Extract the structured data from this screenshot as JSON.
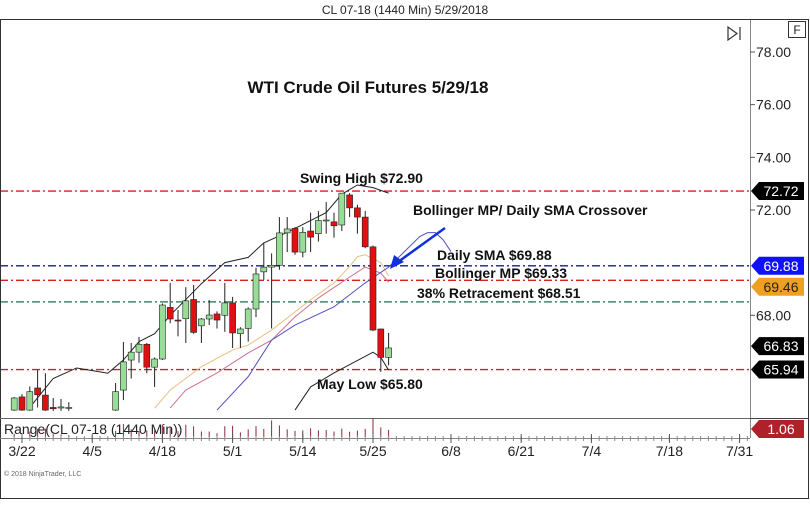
{
  "header": {
    "title": "CL 07-18 (1440 Min)  5/29/2018"
  },
  "toolbar": {
    "scroll_end_icon": "skip-to-end-icon",
    "f_button": "F"
  },
  "indicator_label": "Range(CL 07-18 (1440 Min))",
  "watermark": "© 2018 NinjaTrader, LLC",
  "chart_data": {
    "type": "candlestick",
    "title": "WTI Crude Oil Futures 5/29/18",
    "ylim": [
      64.37,
      79.2
    ],
    "y_ticks": [
      "78.00",
      "76.00",
      "74.00",
      "72.00",
      "68.00"
    ],
    "x_tick_labels": [
      "3/22",
      "4/5",
      "4/18",
      "5/1",
      "5/14",
      "5/25",
      "6/8",
      "6/21",
      "7/4",
      "7/18",
      "7/31"
    ],
    "holidays": [
      "3/30"
    ],
    "candles": [
      {
        "d": "3/21",
        "o": 64.4,
        "h": 64.9,
        "l": 64.37,
        "c": 64.86
      },
      {
        "d": "3/22",
        "o": 64.9,
        "h": 65.0,
        "l": 64.37,
        "c": 64.4
      },
      {
        "d": "3/23",
        "o": 64.4,
        "h": 65.3,
        "l": 64.37,
        "c": 65.1
      },
      {
        "d": "3/26",
        "o": 65.24,
        "h": 65.92,
        "l": 64.5,
        "c": 64.98
      },
      {
        "d": "3/27",
        "o": 64.97,
        "h": 65.8,
        "l": 64.37,
        "c": 64.4
      },
      {
        "d": "3/28",
        "o": 64.5,
        "h": 64.86,
        "l": 64.37,
        "c": 64.45
      },
      {
        "d": "3/29",
        "o": 64.48,
        "h": 64.82,
        "l": 64.37,
        "c": 64.52
      },
      {
        "d": "4/2",
        "o": 64.5,
        "h": 64.7,
        "l": 64.37,
        "c": 64.5
      },
      {
        "d": "4/10",
        "o": 64.4,
        "h": 65.43,
        "l": 64.37,
        "c": 65.1
      },
      {
        "d": "4/11",
        "o": 65.16,
        "h": 66.99,
        "l": 64.78,
        "c": 66.23
      },
      {
        "d": "4/12",
        "o": 66.3,
        "h": 66.95,
        "l": 65.6,
        "c": 66.6
      },
      {
        "d": "4/13",
        "o": 66.6,
        "h": 67.18,
        "l": 66.2,
        "c": 66.9
      },
      {
        "d": "4/16",
        "o": 66.9,
        "h": 66.95,
        "l": 65.8,
        "c": 66.03
      },
      {
        "d": "4/17",
        "o": 66.03,
        "h": 66.4,
        "l": 65.28,
        "c": 66.34
      },
      {
        "d": "4/18",
        "o": 66.34,
        "h": 68.45,
        "l": 66.3,
        "c": 68.39
      },
      {
        "d": "4/19",
        "o": 68.3,
        "h": 69.23,
        "l": 67.7,
        "c": 67.86
      },
      {
        "d": "4/20",
        "o": 67.82,
        "h": 68.2,
        "l": 67.2,
        "c": 67.8
      },
      {
        "d": "4/23",
        "o": 67.87,
        "h": 69.07,
        "l": 66.95,
        "c": 68.55
      },
      {
        "d": "4/24",
        "o": 68.6,
        "h": 69.15,
        "l": 67.3,
        "c": 67.35
      },
      {
        "d": "4/25",
        "o": 67.6,
        "h": 67.9,
        "l": 66.95,
        "c": 67.86
      },
      {
        "d": "4/26",
        "o": 67.86,
        "h": 68.58,
        "l": 67.63,
        "c": 68.01
      },
      {
        "d": "4/27",
        "o": 68.05,
        "h": 68.15,
        "l": 67.5,
        "c": 67.82
      },
      {
        "d": "4/30",
        "o": 68.0,
        "h": 69.23,
        "l": 67.37,
        "c": 68.47
      },
      {
        "d": "5/1",
        "o": 68.47,
        "h": 68.7,
        "l": 66.76,
        "c": 67.33
      },
      {
        "d": "5/2",
        "o": 67.3,
        "h": 67.55,
        "l": 66.76,
        "c": 67.48
      },
      {
        "d": "5/3",
        "o": 67.5,
        "h": 68.3,
        "l": 67.0,
        "c": 68.24
      },
      {
        "d": "5/4",
        "o": 68.24,
        "h": 69.8,
        "l": 67.93,
        "c": 69.57
      },
      {
        "d": "5/7",
        "o": 69.65,
        "h": 70.74,
        "l": 69.35,
        "c": 69.83
      },
      {
        "d": "5/8",
        "o": 69.83,
        "h": 70.35,
        "l": 67.5,
        "c": 69.9
      },
      {
        "d": "5/9",
        "o": 69.9,
        "h": 71.73,
        "l": 69.73,
        "c": 71.13
      },
      {
        "d": "5/10",
        "o": 71.13,
        "h": 71.73,
        "l": 70.4,
        "c": 71.28
      },
      {
        "d": "5/11",
        "o": 71.3,
        "h": 71.35,
        "l": 70.3,
        "c": 70.4
      },
      {
        "d": "5/14",
        "o": 70.4,
        "h": 71.35,
        "l": 70.2,
        "c": 71.15
      },
      {
        "d": "5/15",
        "o": 71.2,
        "h": 71.9,
        "l": 70.4,
        "c": 70.97
      },
      {
        "d": "5/16",
        "o": 71.1,
        "h": 71.96,
        "l": 70.8,
        "c": 71.6
      },
      {
        "d": "5/17",
        "o": 71.6,
        "h": 72.3,
        "l": 71.1,
        "c": 71.62
      },
      {
        "d": "5/18",
        "o": 71.55,
        "h": 71.9,
        "l": 70.95,
        "c": 71.4
      },
      {
        "d": "5/21",
        "o": 71.43,
        "h": 72.64,
        "l": 71.2,
        "c": 72.64
      },
      {
        "d": "5/22",
        "o": 72.57,
        "h": 72.64,
        "l": 71.73,
        "c": 72.08
      },
      {
        "d": "5/23",
        "o": 72.08,
        "h": 72.2,
        "l": 71.1,
        "c": 71.73
      },
      {
        "d": "5/24",
        "o": 71.73,
        "h": 71.96,
        "l": 70.55,
        "c": 70.6
      },
      {
        "d": "5/25",
        "o": 70.6,
        "h": 70.65,
        "l": 67.4,
        "c": 67.44
      },
      {
        "d": "5/28",
        "o": 67.48,
        "h": 67.5,
        "l": 65.85,
        "c": 66.4
      },
      {
        "d": "5/29",
        "o": 66.4,
        "h": 67.33,
        "l": 66.1,
        "c": 66.76
      }
    ],
    "overlays": [
      {
        "name": "Bollinger upper",
        "color": "#222222",
        "points": [
          [
            "3/23",
            64.5
          ],
          [
            "3/28",
            65.6
          ],
          [
            "4/3",
            66.0
          ],
          [
            "4/6",
            65.85
          ],
          [
            "4/9",
            65.8
          ],
          [
            "4/11",
            66.3
          ],
          [
            "4/13",
            67.0
          ],
          [
            "4/17",
            67.3
          ],
          [
            "4/19",
            68.0
          ],
          [
            "4/25",
            69.2
          ],
          [
            "4/30",
            70.0
          ],
          [
            "5/3",
            70.2
          ],
          [
            "5/7",
            70.75
          ],
          [
            "5/10",
            71.15
          ],
          [
            "5/15",
            71.6
          ],
          [
            "5/17",
            71.9
          ],
          [
            "5/21",
            72.6
          ],
          [
            "5/23",
            72.95
          ],
          [
            "5/25",
            72.85
          ],
          [
            "5/29",
            72.64
          ]
        ]
      },
      {
        "name": "Bollinger lower",
        "color": "#222222",
        "points": [
          [
            "5/11",
            64.4
          ],
          [
            "5/15",
            65.28
          ],
          [
            "5/18",
            65.81
          ],
          [
            "5/25",
            66.6
          ],
          [
            "5/28",
            66.4
          ],
          [
            "5/29",
            65.92
          ]
        ]
      },
      {
        "name": "Bollinger MP",
        "color": "#e8c080",
        "points": [
          [
            "4/17",
            64.47
          ],
          [
            "4/19",
            65.16
          ],
          [
            "4/25",
            66.05
          ],
          [
            "5/1",
            66.68
          ],
          [
            "5/3",
            66.87
          ],
          [
            "5/8",
            67.44
          ],
          [
            "5/11",
            68.13
          ],
          [
            "5/15",
            68.59
          ],
          [
            "5/18",
            69.23
          ],
          [
            "5/22",
            69.85
          ],
          [
            "5/23",
            70.23
          ],
          [
            "5/24",
            70.3
          ],
          [
            "5/28",
            70.0
          ],
          [
            "5/29",
            69.5
          ]
        ]
      },
      {
        "name": "pink average",
        "color": "#d07090",
        "points": [
          [
            "4/19",
            64.48
          ],
          [
            "4/23",
            65.16
          ],
          [
            "4/27",
            65.81
          ],
          [
            "5/3",
            66.57
          ],
          [
            "5/8",
            67.06
          ],
          [
            "5/11",
            67.94
          ],
          [
            "5/16",
            68.66
          ],
          [
            "5/22",
            69.45
          ],
          [
            "5/24",
            69.83
          ],
          [
            "5/28",
            69.6
          ],
          [
            "5/29",
            69.26
          ]
        ]
      },
      {
        "name": "Daily SMA",
        "color": "#5050c0",
        "points": [
          [
            "4/27",
            64.4
          ],
          [
            "5/3",
            65.67
          ],
          [
            "5/8",
            67.06
          ],
          [
            "5/11",
            67.63
          ],
          [
            "5/18",
            68.32
          ],
          [
            "5/24",
            69.23
          ],
          [
            "5/29",
            69.83
          ],
          [
            "6/4",
            70.99
          ],
          [
            "6/5",
            71.14
          ],
          [
            "6/6",
            71.14
          ],
          [
            "6/7",
            70.86
          ],
          [
            "6/8",
            70.42
          ]
        ]
      }
    ],
    "levels": [
      {
        "value": 72.72,
        "color": "#d02020",
        "tag": "72.72",
        "tag_color": "#000000"
      },
      {
        "value": 69.88,
        "color": "#1a1a8c",
        "tag": "69.88",
        "tag_color": "#1010ff"
      },
      {
        "value": 69.33,
        "color": "#d02020",
        "tag": "69.46",
        "tag_color": "#f0a020"
      },
      {
        "value": 68.51,
        "color": "#3a8a6a",
        "tag": "",
        "tag_color": ""
      },
      {
        "value": 65.94,
        "color": "#d02020",
        "tag": "65.94",
        "tag_color": "#000000"
      }
    ],
    "last_price_tag": "66.83",
    "range_tag": "1.06",
    "annotations": {
      "swing_high": "Swing High $72.90",
      "crossover": "Bollinger MP/ Daily SMA Crossover",
      "daily_sma": "Daily SMA $69.88",
      "bollinger_mp": "Bollinger MP $69.33",
      "retracement": "38% Retracement $68.51",
      "may_low": "May Low $65.80"
    },
    "colors": {
      "up": "#98dc98",
      "down": "#e01010",
      "range_bars": "#8a2a3a"
    }
  }
}
